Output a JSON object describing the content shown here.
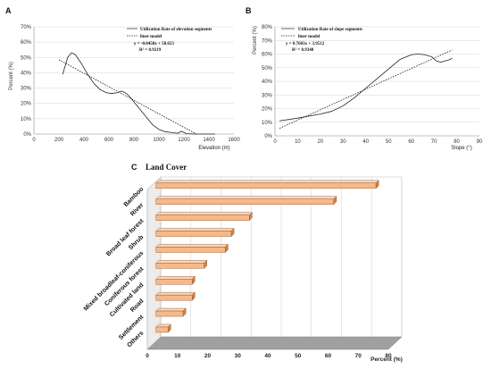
{
  "chart_data": [
    {
      "panel": "A",
      "type": "line",
      "xlabel": "Elevation (m)",
      "ylabel": "Percent (%)",
      "xlim": [
        0,
        1600
      ],
      "ylim": [
        0,
        70
      ],
      "xticks": [
        0,
        200,
        400,
        600,
        800,
        1000,
        1200,
        1400,
        1600
      ],
      "yticks": [
        0,
        10,
        20,
        30,
        40,
        50,
        60,
        70
      ],
      "legend": [
        "Utilization Rate of  elevation segments",
        "liner model"
      ],
      "equation": "y = -0.0458x + 58.653",
      "r2": "R² = 0.9219",
      "series": [
        {
          "name": "Utilization Rate of  elevation segments",
          "style": "solid",
          "x": [
            230,
            270,
            300,
            330,
            380,
            430,
            480,
            530,
            580,
            620,
            670,
            700,
            730,
            760,
            800,
            850,
            900,
            950,
            1000,
            1050,
            1100,
            1150,
            1180,
            1220,
            1280,
            1350,
            1400,
            1450
          ],
          "y": [
            39,
            50,
            53,
            52,
            46,
            39,
            33,
            29,
            27,
            26.5,
            27,
            28,
            27,
            25,
            21,
            16,
            11,
            6,
            3,
            1.5,
            1,
            0.5,
            1.8,
            0.3,
            0,
            0,
            0,
            0
          ]
        },
        {
          "name": "liner model",
          "style": "dashed",
          "x": [
            200,
            1300
          ],
          "y": [
            48.5,
            0
          ]
        }
      ]
    },
    {
      "panel": "B",
      "type": "line",
      "xlabel": "Slope (°)",
      "ylabel": "Percent (%)",
      "xlim": [
        0,
        90
      ],
      "ylim": [
        0,
        80
      ],
      "xticks": [
        0,
        10,
        20,
        30,
        40,
        50,
        60,
        70,
        80,
        90
      ],
      "yticks": [
        0,
        10,
        20,
        30,
        40,
        50,
        60,
        70,
        80
      ],
      "legend": [
        "Utilization Rate of slope segments",
        "liner model"
      ],
      "equation": "y = 0.7603x + 3.9512",
      "r2": "R² = 0.9348",
      "series": [
        {
          "name": "Utilization Rate of slope segments",
          "style": "solid",
          "x": [
            2,
            10,
            20,
            25,
            30,
            35,
            40,
            45,
            50,
            55,
            60,
            63,
            66,
            69,
            71,
            73,
            75,
            77,
            78
          ],
          "y": [
            11,
            13,
            16,
            18,
            22,
            28,
            35,
            42,
            49,
            56,
            59.5,
            60,
            59.5,
            58,
            55,
            54,
            55,
            56,
            57
          ]
        },
        {
          "name": "liner model",
          "style": "dashed",
          "x": [
            2,
            78
          ],
          "y": [
            5.5,
            63
          ]
        }
      ]
    },
    {
      "panel": "C",
      "type": "bar",
      "orientation": "horizontal",
      "title": "Land Cover",
      "xlabel": "Percent (%)",
      "xlim": [
        0,
        80
      ],
      "xticks": [
        0,
        10,
        20,
        30,
        40,
        50,
        60,
        70,
        80
      ],
      "categories": [
        "Bamboo",
        "River",
        "Broad leaf forest",
        "Shrub",
        "Mixed broadleaf-coniferous",
        "Coniferous forest",
        "Cultivated land",
        "Road",
        "Settlement",
        "Others"
      ],
      "values": [
        73,
        59,
        31,
        25,
        23,
        16,
        12,
        12,
        9,
        4
      ],
      "colors": {
        "bar": "#f5b98a",
        "bar_edge": "#8a4a1e",
        "floor": "#a0a0a0"
      }
    }
  ]
}
